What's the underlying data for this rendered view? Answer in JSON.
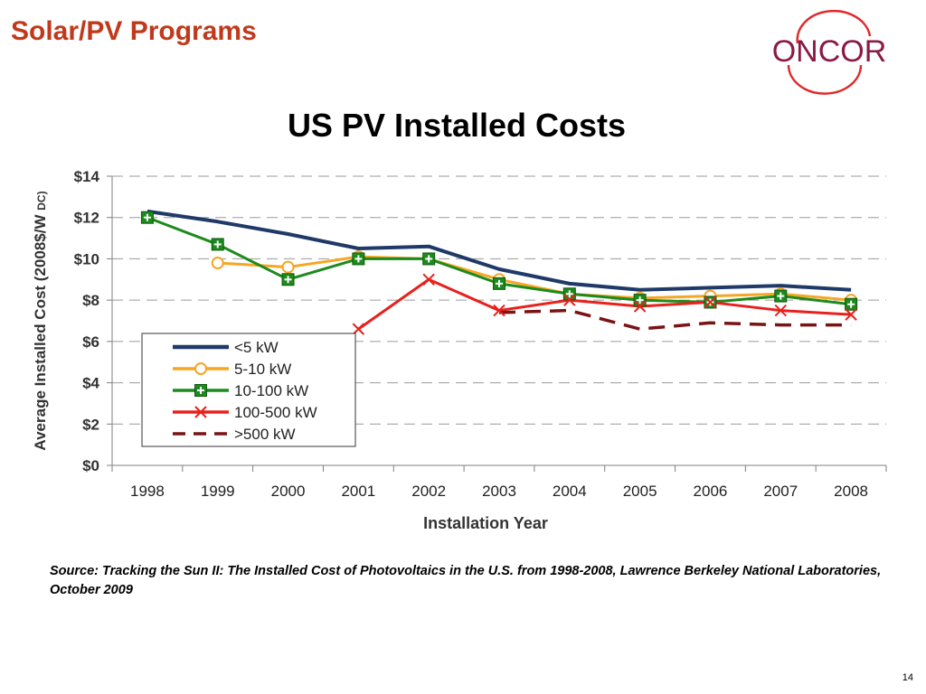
{
  "slide": {
    "title": "Solar/PV Programs",
    "logo_text": "ONCOR",
    "page_number": "14",
    "source_note": "Source: Tracking the Sun II: The Installed Cost of Photovoltaics in the U.S. from 1998-2008, Lawrence Berkeley National Laboratories, October 2009"
  },
  "colors": {
    "title": "#c0391b",
    "logo_text": "#8a1a45",
    "logo_ring": "#e02a2a"
  },
  "chart_data": {
    "type": "line",
    "title": "US PV Installed Costs",
    "xlabel": "Installation Year",
    "ylabel": "Average Installed Cost (2008$/W",
    "ylabel_suffix": "DC)",
    "categories": [
      "1998",
      "1999",
      "2000",
      "2001",
      "2002",
      "2003",
      "2004",
      "2005",
      "2006",
      "2007",
      "2008"
    ],
    "ylim": [
      0,
      14
    ],
    "yticks": [
      0,
      2,
      4,
      6,
      8,
      10,
      12,
      14
    ],
    "ytick_labels": [
      "$0",
      "$2",
      "$4",
      "$6",
      "$8",
      "$10",
      "$12",
      "$14"
    ],
    "grid": "horizontal dashed",
    "legend_position": "lower-left inside plot",
    "series": [
      {
        "name": "<5 kW",
        "color": "#1f3a68",
        "style": "solid-thick",
        "marker": "none",
        "values": [
          12.3,
          11.8,
          11.2,
          10.5,
          10.6,
          9.5,
          8.8,
          8.5,
          8.6,
          8.7,
          8.5
        ]
      },
      {
        "name": "5-10 kW",
        "color": "#f5a623",
        "style": "solid",
        "marker": "circle",
        "values": [
          null,
          9.8,
          9.6,
          10.1,
          10.0,
          9.0,
          8.3,
          8.1,
          8.2,
          8.3,
          8.0
        ]
      },
      {
        "name": "10-100 kW",
        "color": "#1d8a1d",
        "style": "solid",
        "marker": "square-plus",
        "values": [
          12.0,
          10.7,
          9.0,
          10.0,
          10.0,
          8.8,
          8.3,
          8.0,
          7.9,
          8.2,
          7.8
        ]
      },
      {
        "name": "100-500 kW",
        "color": "#e8211d",
        "style": "solid",
        "marker": "x",
        "values": [
          null,
          null,
          null,
          6.6,
          9.0,
          7.5,
          8.0,
          7.7,
          7.9,
          7.5,
          7.3
        ]
      },
      {
        "name": ">500 kW",
        "color": "#7a1414",
        "style": "dashed-thick",
        "marker": "none",
        "values": [
          null,
          null,
          null,
          null,
          null,
          7.4,
          7.5,
          6.6,
          6.9,
          6.8,
          6.8
        ]
      }
    ]
  }
}
